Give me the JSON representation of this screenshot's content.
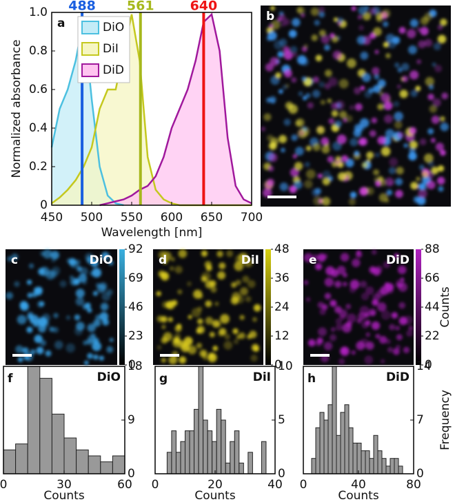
{
  "chart_data": [
    {
      "type": "area",
      "label": "a",
      "xlabel": "Wavelength [nm]",
      "ylabel": "Normalized absorbance",
      "x": [
        450,
        460,
        470,
        480,
        490,
        500,
        510,
        520,
        530,
        540,
        550,
        560,
        570,
        580,
        590,
        600,
        610,
        620,
        630,
        640,
        650,
        660,
        670,
        680,
        690,
        700
      ],
      "series": [
        {
          "name": "DiO",
          "color": "#4cc0e0",
          "fill": "#c3ecf7",
          "values": [
            0.3,
            0.5,
            0.6,
            0.75,
            0.97,
            0.55,
            0.2,
            0.05,
            0.01,
            0,
            null,
            null,
            null,
            null,
            null,
            null,
            null,
            null,
            null,
            null,
            null,
            null,
            null,
            null,
            null,
            null
          ]
        },
        {
          "name": "DiI",
          "color": "#c4c81e",
          "fill": "#f6f6c2",
          "values": [
            0.01,
            0.04,
            0.08,
            0.13,
            0.2,
            0.3,
            0.5,
            0.6,
            0.6,
            0.8,
            0.99,
            0.75,
            0.25,
            0.08,
            0.03,
            0.01,
            0,
            0,
            0,
            0,
            0,
            0,
            0,
            0,
            0,
            0
          ]
        },
        {
          "name": "DiD",
          "color": "#a0189c",
          "fill": "#ffc4f0",
          "values": [
            null,
            null,
            null,
            null,
            null,
            null,
            0,
            0.01,
            0.02,
            0.03,
            0.05,
            0.08,
            0.1,
            0.15,
            0.25,
            0.4,
            0.5,
            0.6,
            0.75,
            0.95,
            0.99,
            0.8,
            0.35,
            0.1,
            0.03,
            0.01
          ]
        }
      ],
      "lasers": [
        {
          "value": 488,
          "color": "#1a5fe0"
        },
        {
          "value": 561,
          "color": "#a6b81c"
        },
        {
          "value": 640,
          "color": "#ee1414"
        }
      ],
      "xlim": [
        450,
        700
      ],
      "xticks": [
        450,
        500,
        550,
        600,
        650,
        700
      ],
      "ylim": [
        0,
        1
      ],
      "yticks": [
        0,
        0.2,
        0.4,
        0.6,
        0.8,
        {
          "value": 1,
          "label": "1.0"
        }
      ]
    },
    {
      "type": "image",
      "label": "b",
      "tints": [
        "#40a0ff",
        "#e8e040",
        "#d040e0"
      ]
    },
    {
      "type": "image",
      "label": "c",
      "title": "DiO",
      "tints": [
        "#3aa8f0"
      ],
      "colorbar": {
        "color": "#3ab0e0",
        "lim": [
          0,
          92
        ],
        "ticks": [
          0,
          23,
          46,
          69,
          92
        ]
      }
    },
    {
      "type": "image",
      "label": "d",
      "title": "DiI",
      "tints": [
        "#e0d020"
      ],
      "colorbar": {
        "color": "#d8d010",
        "lim": [
          0,
          48
        ],
        "ticks": [
          0,
          12,
          24,
          36,
          48
        ]
      }
    },
    {
      "type": "image",
      "label": "e",
      "title": "DiD",
      "tints": [
        "#b020c0"
      ],
      "colorbar": {
        "color": "#b020c0",
        "lim": [
          0,
          88
        ],
        "ticks": [
          0,
          22,
          44,
          66,
          88
        ],
        "label": "Counts"
      }
    },
    {
      "type": "histogram",
      "label": "f",
      "title": "DiO",
      "xlabel": "Counts",
      "bins": [
        0,
        6,
        12,
        18,
        24,
        30,
        36,
        42,
        48,
        54,
        60
      ],
      "counts": [
        4,
        5,
        18,
        16,
        10,
        6,
        4,
        3,
        2,
        3
      ],
      "xlim": [
        0,
        60
      ],
      "xticks": [
        0,
        30,
        60
      ],
      "ylim": [
        0,
        18
      ],
      "yticks": [
        0,
        9,
        18
      ]
    },
    {
      "type": "histogram",
      "label": "g",
      "title": "DiI",
      "xlabel": "Counts",
      "bins": [
        4,
        5.5,
        7,
        8.5,
        10,
        11.5,
        13,
        14.5,
        16,
        17.5,
        19,
        20.5,
        22,
        23.5,
        25,
        26.5,
        28,
        29.5,
        31,
        32.5,
        34,
        35.5,
        37
      ],
      "counts": [
        2,
        4,
        2,
        3,
        4,
        4,
        6,
        10,
        5,
        4,
        3,
        6,
        5,
        1,
        3,
        4,
        1,
        0,
        2,
        0,
        0,
        3
      ],
      "xlim": [
        0,
        40
      ],
      "xticks": [
        0,
        20,
        40
      ],
      "ylim": [
        0,
        10
      ],
      "yticks": [
        0,
        5,
        10
      ]
    },
    {
      "type": "histogram",
      "label": "h",
      "title": "DiD",
      "xlabel": "Counts",
      "ylabel": "Frequency",
      "bins": [
        6,
        9,
        12,
        15,
        18,
        21,
        24,
        27,
        30,
        33,
        36,
        39,
        42,
        45,
        48,
        51,
        54,
        57,
        60,
        63,
        66,
        69,
        72
      ],
      "counts": [
        2,
        6,
        8,
        7,
        9,
        14,
        5,
        8,
        9,
        6,
        4,
        4,
        3,
        3,
        2,
        5,
        3,
        2,
        1,
        2,
        2,
        1
      ],
      "xlim": [
        0,
        80
      ],
      "xticks": [
        0,
        40,
        80
      ],
      "ylim": [
        0,
        14
      ],
      "yticks": [
        0,
        7,
        14
      ]
    }
  ]
}
